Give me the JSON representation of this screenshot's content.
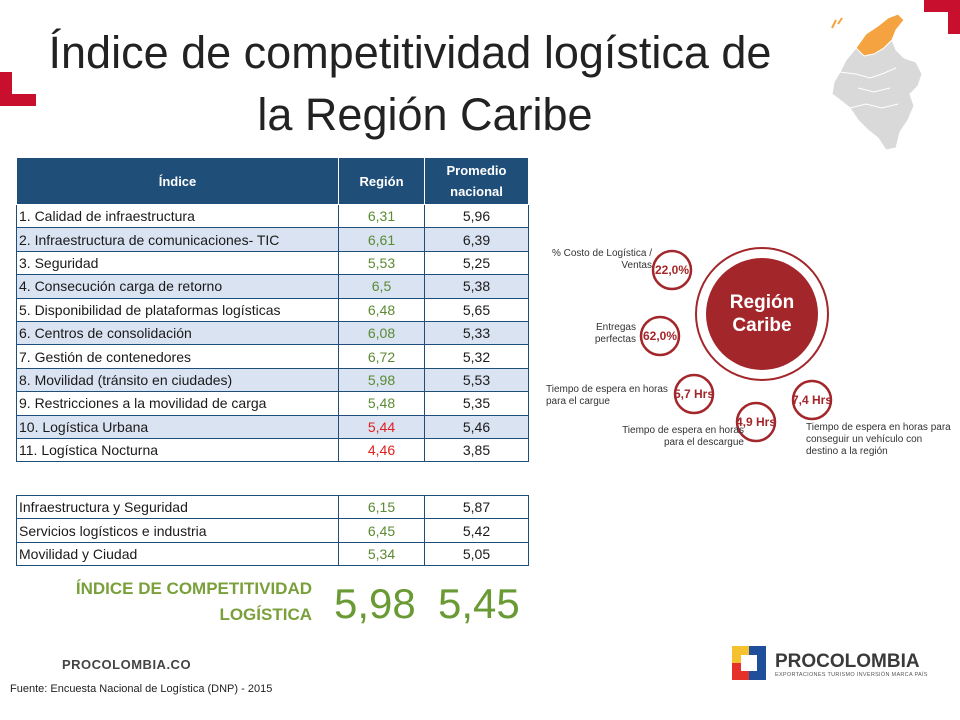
{
  "title": {
    "line1": "Índice de competitividad logística de",
    "line2": "la Región Caribe"
  },
  "table": {
    "headers": [
      "Índice",
      "Región",
      "Promedio nacional"
    ],
    "rows": [
      {
        "label": "1. Calidad de infraestructura",
        "region": "6,31",
        "nacional": "5,96",
        "region_color": "green"
      },
      {
        "label": "2. Infraestructura de comunicaciones- TIC",
        "region": "6,61",
        "nacional": "6,39",
        "region_color": "green"
      },
      {
        "label": "3. Seguridad",
        "region": "5,53",
        "nacional": "5,25",
        "region_color": "green"
      },
      {
        "label": "4. Consecución carga de retorno",
        "region": "6,5",
        "nacional": "5,38",
        "region_color": "green"
      },
      {
        "label": "5. Disponibilidad de plataformas logísticas",
        "region": "6,48",
        "nacional": "5,65",
        "region_color": "green"
      },
      {
        "label": "6. Centros de consolidación",
        "region": "6,08",
        "nacional": "5,33",
        "region_color": "green"
      },
      {
        "label": "7. Gestión de contenedores",
        "region": "6,72",
        "nacional": "5,32",
        "region_color": "green"
      },
      {
        "label": "8. Movilidad (tránsito en ciudades)",
        "region": "5,98",
        "nacional": "5,53",
        "region_color": "green"
      },
      {
        "label": "9. Restricciones a la movilidad de carga",
        "region": "5,48",
        "nacional": "5,35",
        "region_color": "green"
      },
      {
        "label": "10. Logística Urbana",
        "region": "5,44",
        "nacional": "5,46",
        "region_color": "red"
      },
      {
        "label": "11. Logística Nocturna",
        "region": "4,46",
        "nacional": "3,85",
        "region_color": "red"
      }
    ]
  },
  "summary": [
    {
      "label": "Infraestructura y Seguridad",
      "region": "6,15",
      "nacional": "5,87"
    },
    {
      "label": "Servicios logísticos e industria",
      "region": "6,45",
      "nacional": "5,42"
    },
    {
      "label": "Movilidad y Ciudad",
      "region": "5,34",
      "nacional": "5,05"
    }
  ],
  "final": {
    "label_line1": "ÍNDICE DE COMPETITIVIDAD",
    "label_line2": "LOGÍSTICA",
    "region": "5,98",
    "nacional": "5,45"
  },
  "infographic": {
    "center_line1": "Región",
    "center_line2": "Caribe",
    "bubbles": [
      {
        "value": "22,0%",
        "label": "% Costo de Logística / Ventas"
      },
      {
        "value": "62,0%",
        "label": "Entregas perfectas"
      },
      {
        "value": "5,7 Hrs",
        "label": "Tiempo de espera en horas para el cargue"
      },
      {
        "value": "4,9 Hrs",
        "label": "Tiempo de espera en horas para el descargue"
      },
      {
        "value": "7,4 Hrs",
        "label": "Tiempo de espera en horas para conseguir un vehículo con destino a la región"
      }
    ]
  },
  "footer": {
    "url": "PROCOLOMBIA.CO",
    "source": "Fuente: Encuesta Nacional de Logística (DNP) - 2015",
    "logo_name": "PROCOLOMBIA",
    "logo_tagline": "EXPORTACIONES TURISMO INVERSIÓN MARCA PAÍS"
  },
  "colors": {
    "header_blue": "#1f4e79",
    "band_blue": "#dae3f1",
    "green": "#5b8a34",
    "red": "#e02020",
    "infographic_red": "#a3262a",
    "map_orange": "#f4a340",
    "corner_red": "#c8102e"
  }
}
